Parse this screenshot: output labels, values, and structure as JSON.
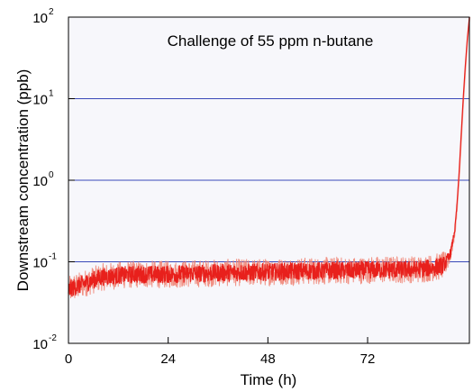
{
  "chart_data": {
    "type": "line",
    "annotation": "Challenge of 55 ppm n-butane",
    "xlabel": "Time (h)",
    "ylabel": "Downstream concentration (ppb)",
    "xlim": [
      0,
      96.5
    ],
    "ylim": [
      0.01,
      100
    ],
    "yscale": "log",
    "x_ticks": [
      {
        "value": 0,
        "label": "0"
      },
      {
        "value": 24,
        "label": "24"
      },
      {
        "value": 48,
        "label": "48"
      },
      {
        "value": 72,
        "label": "72"
      }
    ],
    "y_ticks": [
      {
        "value": 0.01,
        "base": "10",
        "exp": "-2"
      },
      {
        "value": 0.1,
        "base": "10",
        "exp": "-1"
      },
      {
        "value": 1,
        "base": "10",
        "exp": "0"
      },
      {
        "value": 10,
        "base": "10",
        "exp": "1"
      },
      {
        "value": 100,
        "base": "10",
        "exp": "2"
      }
    ],
    "gridlines_y": [
      0.1,
      1,
      10
    ],
    "grid": "horizontal",
    "series": [
      {
        "color": "#e8201c",
        "noise_color": "#f08070",
        "x": [
          0,
          1,
          2,
          3,
          4,
          6,
          8,
          12,
          16,
          20,
          24,
          28,
          32,
          36,
          40,
          44,
          48,
          52,
          56,
          60,
          64,
          68,
          72,
          76,
          80,
          84,
          88,
          90,
          91,
          92,
          93,
          93.5,
          94,
          94.5,
          95,
          95.5,
          96,
          96.5
        ],
        "y": [
          0.045,
          0.048,
          0.05,
          0.052,
          0.055,
          0.06,
          0.065,
          0.068,
          0.07,
          0.07,
          0.07,
          0.071,
          0.072,
          0.073,
          0.074,
          0.074,
          0.075,
          0.076,
          0.077,
          0.077,
          0.078,
          0.078,
          0.079,
          0.08,
          0.08,
          0.081,
          0.085,
          0.09,
          0.1,
          0.13,
          0.25,
          0.5,
          1.2,
          3.5,
          10,
          25,
          55,
          100
        ]
      }
    ]
  }
}
